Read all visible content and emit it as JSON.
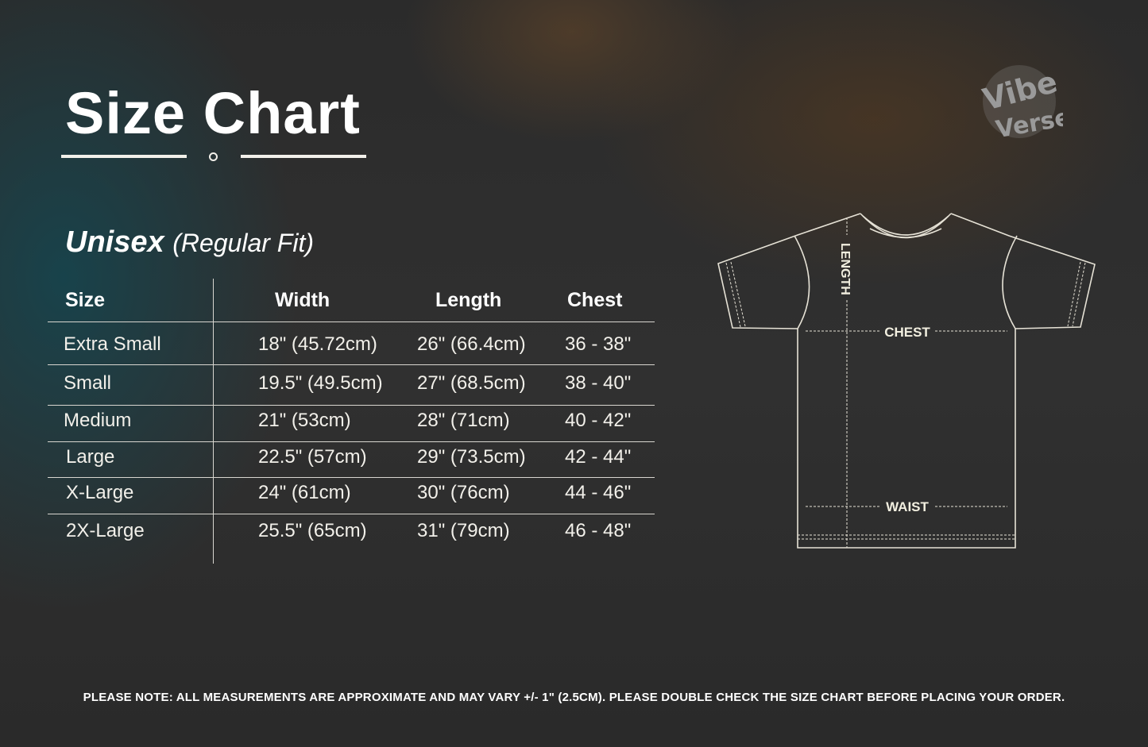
{
  "title": "Size Chart",
  "subtitle": {
    "category": "Unisex",
    "fit": "(Regular Fit)"
  },
  "logo": {
    "text": "Vibe Verse",
    "icon": "vibe-verse-logo"
  },
  "table": {
    "headers": [
      "Size",
      "Width",
      "Length",
      "Chest"
    ],
    "rows": [
      [
        "Extra Small",
        "18\" (45.72cm)",
        "26\" (66.4cm)",
        "36 - 38\""
      ],
      [
        "Small",
        "19.5\" (49.5cm)",
        "27\" (68.5cm)",
        "38 - 40\""
      ],
      [
        "Medium",
        "21\" (53cm)",
        "28\" (71cm)",
        "40 - 42\""
      ],
      [
        "Large",
        "22.5\" (57cm)",
        "29\" (73.5cm)",
        "42 - 44\""
      ],
      [
        "X-Large",
        "24\" (61cm)",
        "30\" (76cm)",
        "44 - 46\""
      ],
      [
        "2X-Large",
        "25.5\" (65cm)",
        "31\" (79cm)",
        "46 - 48\""
      ]
    ]
  },
  "diagram": {
    "length_label": "LENGTH",
    "chest_label": "CHEST",
    "waist_label": "WAIST"
  },
  "note": "PLEASE NOTE: ALL MEASUREMENTS ARE APPROXIMATE AND MAY VARY +/- 1\" (2.5CM). PLEASE DOUBLE CHECK THE SIZE CHART BEFORE PLACING YOUR ORDER.",
  "colors": {
    "text": "#f2f0ea",
    "background": "#2e2e2e"
  }
}
